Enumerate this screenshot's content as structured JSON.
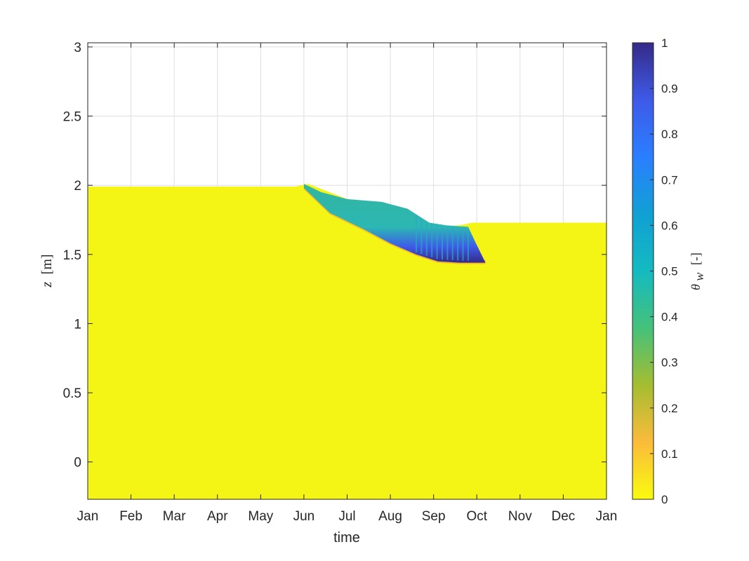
{
  "chart_data": {
    "type": "heatmap",
    "title": "",
    "xlabel": "time",
    "ylabel": {
      "symbol": "z",
      "unit": "[m]"
    },
    "x_ticks": [
      "Jan",
      "Feb",
      "Mar",
      "Apr",
      "May",
      "Jun",
      "Jul",
      "Aug",
      "Sep",
      "Oct",
      "Nov",
      "Dec",
      "Jan"
    ],
    "y_ticks": [
      0,
      0.5,
      1,
      1.5,
      2,
      2.5,
      3
    ],
    "xlim_months": [
      0,
      12
    ],
    "ylim": [
      -0.27,
      3.03
    ],
    "grid": true,
    "colorbar": {
      "label": {
        "symbol": "θ",
        "subscript": "w",
        "unit": "[-]"
      },
      "ticks": [
        0,
        0.1,
        0.2,
        0.3,
        0.4,
        0.5,
        0.6,
        0.7,
        0.8,
        0.9,
        1
      ],
      "range": [
        0,
        1
      ],
      "colormap": "parula",
      "colors": [
        "#f9fb0e",
        "#fbbb3b",
        "#a5bd31",
        "#45c17a",
        "#14bac1",
        "#11a0d4",
        "#2a7fff",
        "#3e5ae8",
        "#352a87"
      ]
    },
    "surface_height": {
      "description_points": [
        {
          "month": 0.0,
          "z": 1.99
        },
        {
          "month": 4.8,
          "z": 1.99
        },
        {
          "month": 5.1,
          "z": 2.01
        },
        {
          "month": 6.0,
          "z": 1.9
        },
        {
          "month": 7.0,
          "z": 1.86
        },
        {
          "month": 8.0,
          "z": 1.7
        },
        {
          "month": 8.6,
          "z": 1.71
        },
        {
          "month": 8.9,
          "z": 1.73
        },
        {
          "month": 12.0,
          "z": 1.73
        }
      ]
    },
    "wet_layer": {
      "top": [
        {
          "month": 5.0,
          "z": 2.01
        },
        {
          "month": 5.4,
          "z": 1.95
        },
        {
          "month": 6.0,
          "z": 1.9
        },
        {
          "month": 6.8,
          "z": 1.88
        },
        {
          "month": 7.4,
          "z": 1.83
        },
        {
          "month": 7.9,
          "z": 1.73
        },
        {
          "month": 8.3,
          "z": 1.71
        },
        {
          "month": 8.8,
          "z": 1.7
        },
        {
          "month": 8.95,
          "z": 1.6
        }
      ],
      "bottom": [
        {
          "month": 5.0,
          "z": 1.98
        },
        {
          "month": 5.6,
          "z": 1.8
        },
        {
          "month": 6.4,
          "z": 1.68
        },
        {
          "month": 7.0,
          "z": 1.58
        },
        {
          "month": 7.6,
          "z": 1.5
        },
        {
          "month": 8.1,
          "z": 1.45
        },
        {
          "month": 8.6,
          "z": 1.44
        },
        {
          "month": 9.2,
          "z": 1.44
        }
      ]
    }
  }
}
